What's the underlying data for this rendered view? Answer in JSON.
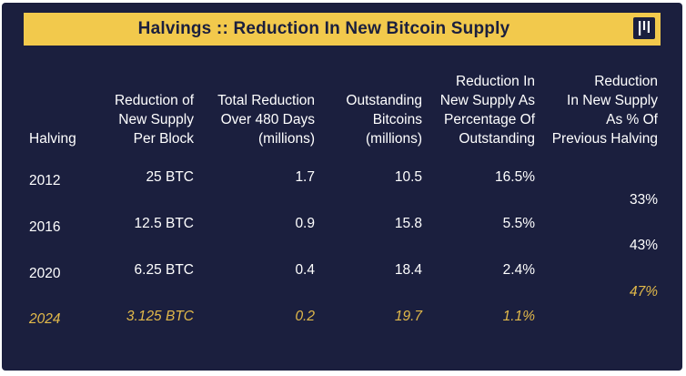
{
  "title": "Halvings :: Reduction In New Bitcoin Supply",
  "logo_icon": "pantera-logo-icon",
  "colors": {
    "background": "#1b1f3e",
    "title_bar": "#f2c94c",
    "text": "#ffffff",
    "highlight": "#e2b94a"
  },
  "columns": [
    "Halving",
    "Reduction of New Supply Per Block",
    "Total Reduction Over 480 Days (millions)",
    "Outstanding Bitcoins (millions)",
    "Reduction In New Supply As Percentage Of Outstanding",
    "Reduction In New Supply As % Of Previous Halving"
  ],
  "header_lines": {
    "c1": [
      "Halving"
    ],
    "c2": [
      "Reduction of",
      "New Supply",
      "Per Block"
    ],
    "c3": [
      "Total Reduction",
      "Over 480 Days",
      "(millions)"
    ],
    "c4": [
      "Outstanding",
      "Bitcoins",
      "(millions)"
    ],
    "c5": [
      "Reduction In",
      "New Supply As",
      "Percentage Of",
      "Outstanding"
    ],
    "c6": [
      "Reduction",
      "In New Supply",
      "As % Of",
      "Previous Halving"
    ]
  },
  "rows": [
    {
      "year": "2012",
      "per_block": "25 BTC",
      "total_reduction": "1.7",
      "outstanding": "10.5",
      "pct_outstanding": "16.5%"
    },
    {
      "year": "2016",
      "per_block": "12.5 BTC",
      "total_reduction": "0.9",
      "outstanding": "15.8",
      "pct_outstanding": "5.5%"
    },
    {
      "year": "2020",
      "per_block": "6.25 BTC",
      "total_reduction": "0.4",
      "outstanding": "18.4",
      "pct_outstanding": "2.4%"
    },
    {
      "year": "2024",
      "per_block": "3.125 BTC",
      "total_reduction": "0.2",
      "outstanding": "19.7",
      "pct_outstanding": "1.1%"
    }
  ],
  "previous_halving": [
    "33%",
    "43%",
    "47%"
  ]
}
